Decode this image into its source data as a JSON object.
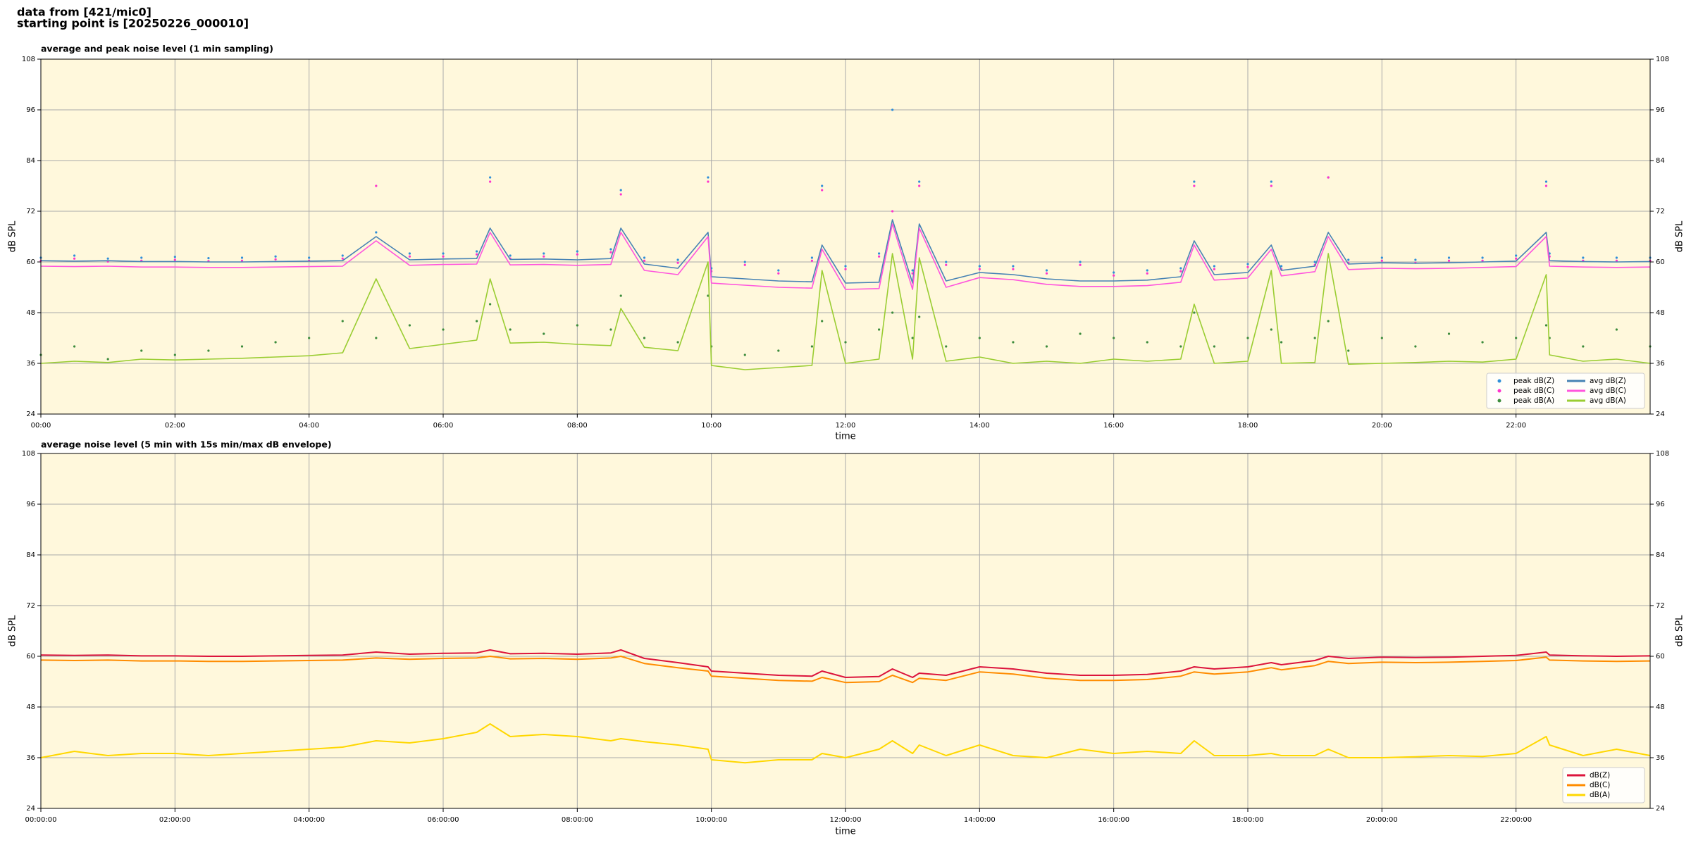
{
  "header": {
    "lines": [
      "data from [421/mic0]",
      "starting point is [20250226_000010]"
    ]
  },
  "chart_data": [
    {
      "type": "line",
      "title": "average and peak noise level (1 min sampling)",
      "x_label": "time",
      "y_label": "dB SPL",
      "y2_label": "dB SPL",
      "xlim": [
        0,
        24
      ],
      "xticks": [
        {
          "value": 0,
          "label": "00:00"
        },
        {
          "value": 2,
          "label": "02:00"
        },
        {
          "value": 4,
          "label": "04:00"
        },
        {
          "value": 6,
          "label": "06:00"
        },
        {
          "value": 8,
          "label": "08:00"
        },
        {
          "value": 10,
          "label": "10:00"
        },
        {
          "value": 12,
          "label": "12:00"
        },
        {
          "value": 14,
          "label": "14:00"
        },
        {
          "value": 16,
          "label": "16:00"
        },
        {
          "value": 18,
          "label": "18:00"
        },
        {
          "value": 20,
          "label": "20:00"
        },
        {
          "value": 22,
          "label": "22:00"
        }
      ],
      "ylim": [
        24,
        108
      ],
      "yticks": [
        24,
        36,
        48,
        60,
        72,
        84,
        96,
        108
      ],
      "y2lim": [
        24,
        108
      ],
      "y2ticks": [
        24,
        36,
        48,
        60,
        72,
        84,
        96,
        108
      ],
      "grid": true,
      "legend": "lower right",
      "legend_columns": 2,
      "background": "#fff8dc",
      "x": [
        0,
        0.5,
        1,
        1.5,
        2,
        2.5,
        3,
        3.5,
        4,
        4.5,
        5,
        5.5,
        6,
        6.5,
        6.7,
        7,
        7.5,
        8,
        8.5,
        8.65,
        9,
        9.5,
        9.95,
        10,
        10.5,
        11,
        11.5,
        11.65,
        12,
        12.5,
        12.7,
        13,
        13.1,
        13.5,
        14,
        14.5,
        15,
        15.5,
        16,
        16.5,
        17,
        17.2,
        17.5,
        18,
        18.35,
        18.5,
        19,
        19.2,
        19.5,
        20,
        20.5,
        21,
        21.5,
        22,
        22.45,
        22.5,
        23,
        23.5,
        24
      ],
      "series": [
        {
          "name": "peak dB(Z)",
          "mark": "dot",
          "color": "#2f8fd8",
          "values": [
            61,
            61.5,
            60.8,
            61,
            61.2,
            60.9,
            61,
            61.3,
            61,
            61.5,
            67,
            62,
            62,
            62.5,
            80,
            61.5,
            62,
            62.5,
            63,
            77,
            61,
            60.5,
            80,
            58.5,
            60,
            58,
            61,
            78,
            59,
            62,
            96,
            58,
            79,
            60,
            59,
            59,
            58,
            60,
            57.5,
            58,
            58.5,
            79,
            59,
            59.5,
            79,
            59,
            60,
            80,
            60.5,
            61,
            60.5,
            61,
            61,
            61.5,
            79,
            62,
            61,
            61,
            61
          ]
        },
        {
          "name": "peak dB(C)",
          "mark": "dot",
          "color": "#ff33cc",
          "values": [
            60.3,
            60.8,
            60.1,
            60.3,
            60.5,
            60.2,
            60.3,
            60.6,
            60.3,
            60.8,
            78,
            61.3,
            61.3,
            61.8,
            79,
            60.8,
            61.3,
            61.8,
            62.3,
            76,
            60.3,
            59.8,
            79,
            57.8,
            59.3,
            57.3,
            60.3,
            77,
            58.3,
            61.3,
            72,
            57.3,
            78,
            59.3,
            58.3,
            58.3,
            57.3,
            59.3,
            56.8,
            57.3,
            57.8,
            78,
            58.3,
            58.8,
            78,
            58.3,
            59.3,
            80,
            59.8,
            60.3,
            59.8,
            60.3,
            60.3,
            60.8,
            78,
            61.3,
            60.3,
            60.3,
            60.3
          ]
        },
        {
          "name": "peak dB(A)",
          "mark": "dot",
          "color": "#3c8c3c",
          "values": [
            38,
            40,
            37,
            39,
            38,
            39,
            40,
            41,
            42,
            46,
            42,
            45,
            44,
            46,
            50,
            44,
            43,
            45,
            44,
            52,
            42,
            41,
            52,
            40,
            38,
            39,
            40,
            46,
            41,
            44,
            48,
            42,
            47,
            40,
            42,
            41,
            40,
            43,
            42,
            41,
            40,
            48,
            40,
            42,
            44,
            41,
            42,
            46,
            39,
            42,
            40,
            43,
            41,
            42,
            45,
            42,
            40,
            44,
            40
          ]
        },
        {
          "name": "avg dB(Z)",
          "mark": "line",
          "color": "#4682b4",
          "values": [
            60.3,
            60.2,
            60.3,
            60.1,
            60.1,
            60,
            60,
            60.1,
            60.2,
            60.3,
            66,
            60.5,
            60.7,
            60.8,
            68,
            60.6,
            60.7,
            60.5,
            60.8,
            68,
            59.5,
            58.5,
            67,
            56.5,
            56,
            55.5,
            55.3,
            64,
            55,
            55.2,
            70,
            55,
            69,
            55.5,
            57.5,
            57,
            56,
            55.5,
            55.5,
            55.7,
            56.5,
            65,
            57,
            57.5,
            64,
            58,
            59,
            67,
            59.5,
            59.8,
            59.7,
            59.8,
            60,
            60.2,
            67,
            60.3,
            60.1,
            60,
            60.1
          ]
        },
        {
          "name": "avg dB(C)",
          "mark": "line",
          "color": "#ff55dd",
          "values": [
            59.0,
            58.9,
            59.0,
            58.8,
            58.8,
            58.7,
            58.7,
            58.8,
            58.9,
            59.0,
            65,
            59.2,
            59.4,
            59.5,
            67,
            59.3,
            59.4,
            59.2,
            59.4,
            67,
            58,
            57,
            66,
            55,
            54.5,
            54,
            53.8,
            63,
            53.5,
            53.7,
            69,
            53.5,
            68,
            54,
            56.3,
            55.8,
            54.7,
            54.2,
            54.2,
            54.4,
            55.2,
            64,
            55.7,
            56.2,
            63,
            56.7,
            57.7,
            66,
            58.2,
            58.5,
            58.4,
            58.5,
            58.7,
            58.9,
            66,
            59,
            58.8,
            58.7,
            58.8
          ]
        },
        {
          "name": "avg dB(A)",
          "mark": "line",
          "color": "#9acd32",
          "values": [
            36,
            36.5,
            36.2,
            37,
            36.8,
            37,
            37.2,
            37.5,
            37.8,
            38.5,
            56,
            39.5,
            40.5,
            41.5,
            56,
            40.8,
            41,
            40.5,
            40.2,
            49,
            39.8,
            39,
            60,
            35.5,
            34.5,
            35,
            35.5,
            58,
            36,
            37,
            62,
            37,
            61,
            36.5,
            37.5,
            36,
            36.5,
            36,
            37,
            36.5,
            37,
            50,
            36,
            36.5,
            58,
            36,
            36.2,
            62,
            35.8,
            36,
            36.2,
            36.5,
            36.3,
            37,
            57,
            38,
            36.5,
            37,
            36
          ]
        }
      ]
    },
    {
      "type": "line",
      "title": "average noise level (5 min with 15s min/max dB envelope)",
      "x_label": "time",
      "y_label": "dB SPL",
      "y2_label": "dB SPL",
      "xlim": [
        0,
        24
      ],
      "xticks": [
        {
          "value": 0,
          "label": "00:00:00"
        },
        {
          "value": 2,
          "label": "02:00:00"
        },
        {
          "value": 4,
          "label": "04:00:00"
        },
        {
          "value": 6,
          "label": "06:00:00"
        },
        {
          "value": 8,
          "label": "08:00:00"
        },
        {
          "value": 10,
          "label": "10:00:00"
        },
        {
          "value": 12,
          "label": "12:00:00"
        },
        {
          "value": 14,
          "label": "14:00:00"
        },
        {
          "value": 16,
          "label": "16:00:00"
        },
        {
          "value": 18,
          "label": "18:00:00"
        },
        {
          "value": 20,
          "label": "20:00:00"
        },
        {
          "value": 22,
          "label": "22:00:00"
        }
      ],
      "ylim": [
        24,
        108
      ],
      "yticks": [
        24,
        36,
        48,
        60,
        72,
        84,
        96,
        108
      ],
      "y2lim": [
        24,
        108
      ],
      "y2ticks": [
        24,
        36,
        48,
        60,
        72,
        84,
        96,
        108
      ],
      "grid": true,
      "legend": "lower right",
      "legend_columns": 1,
      "background": "#fff8dc",
      "x": [
        0,
        0.5,
        1,
        1.5,
        2,
        2.5,
        3,
        3.5,
        4,
        4.5,
        5,
        5.5,
        6,
        6.5,
        6.7,
        7,
        7.5,
        8,
        8.5,
        8.65,
        9,
        9.5,
        9.95,
        10,
        10.5,
        11,
        11.5,
        11.65,
        12,
        12.5,
        12.7,
        13,
        13.1,
        13.5,
        14,
        14.5,
        15,
        15.5,
        16,
        16.5,
        17,
        17.2,
        17.5,
        18,
        18.35,
        18.5,
        19,
        19.2,
        19.5,
        20,
        20.5,
        21,
        21.5,
        22,
        22.45,
        22.5,
        23,
        23.5,
        24
      ],
      "series": [
        {
          "name": "dB(Z)",
          "mark": "line",
          "color": "#dc143c",
          "values": [
            60.3,
            60.2,
            60.3,
            60.1,
            60.1,
            60,
            60,
            60.1,
            60.2,
            60.3,
            61,
            60.5,
            60.7,
            60.8,
            61.5,
            60.6,
            60.7,
            60.5,
            60.8,
            61.5,
            59.5,
            58.5,
            57.5,
            56.5,
            56,
            55.5,
            55.3,
            56.5,
            55,
            55.2,
            57,
            55,
            56,
            55.5,
            57.5,
            57,
            56,
            55.5,
            55.5,
            55.7,
            56.5,
            57.5,
            57,
            57.5,
            58.5,
            58,
            59,
            60,
            59.5,
            59.8,
            59.7,
            59.8,
            60,
            60.2,
            61,
            60.3,
            60.1,
            60,
            60.1
          ]
        },
        {
          "name": "dB(C)",
          "mark": "line",
          "color": "#ff8c00",
          "values": [
            59.1,
            59.0,
            59.1,
            58.9,
            58.9,
            58.8,
            58.8,
            58.9,
            59.0,
            59.1,
            59.6,
            59.3,
            59.5,
            59.6,
            60,
            59.4,
            59.5,
            59.3,
            59.6,
            60,
            58.3,
            57.3,
            56.5,
            55.3,
            54.8,
            54.3,
            54.1,
            55,
            53.8,
            54,
            55.5,
            53.8,
            54.8,
            54.3,
            56.3,
            55.8,
            54.8,
            54.3,
            54.3,
            54.5,
            55.3,
            56.3,
            55.8,
            56.3,
            57.3,
            56.8,
            57.8,
            58.8,
            58.3,
            58.6,
            58.5,
            58.6,
            58.8,
            59,
            59.8,
            59.1,
            58.9,
            58.8,
            58.9
          ]
        },
        {
          "name": "dB(A)",
          "mark": "line",
          "color": "#ffd700",
          "values": [
            36,
            37.5,
            36.5,
            37,
            37,
            36.5,
            37,
            37.5,
            38,
            38.5,
            40,
            39.5,
            40.5,
            42,
            44,
            41,
            41.5,
            41,
            40,
            40.5,
            39.8,
            39,
            38,
            35.5,
            34.8,
            35.5,
            35.5,
            37,
            36,
            38,
            40,
            37,
            39,
            36.5,
            39,
            36.5,
            36,
            38,
            37,
            37.5,
            37,
            40,
            36.5,
            36.5,
            37,
            36.5,
            36.5,
            38,
            36,
            36,
            36.2,
            36.5,
            36.3,
            37,
            41,
            39,
            36.5,
            38,
            36.5
          ]
        }
      ]
    }
  ]
}
